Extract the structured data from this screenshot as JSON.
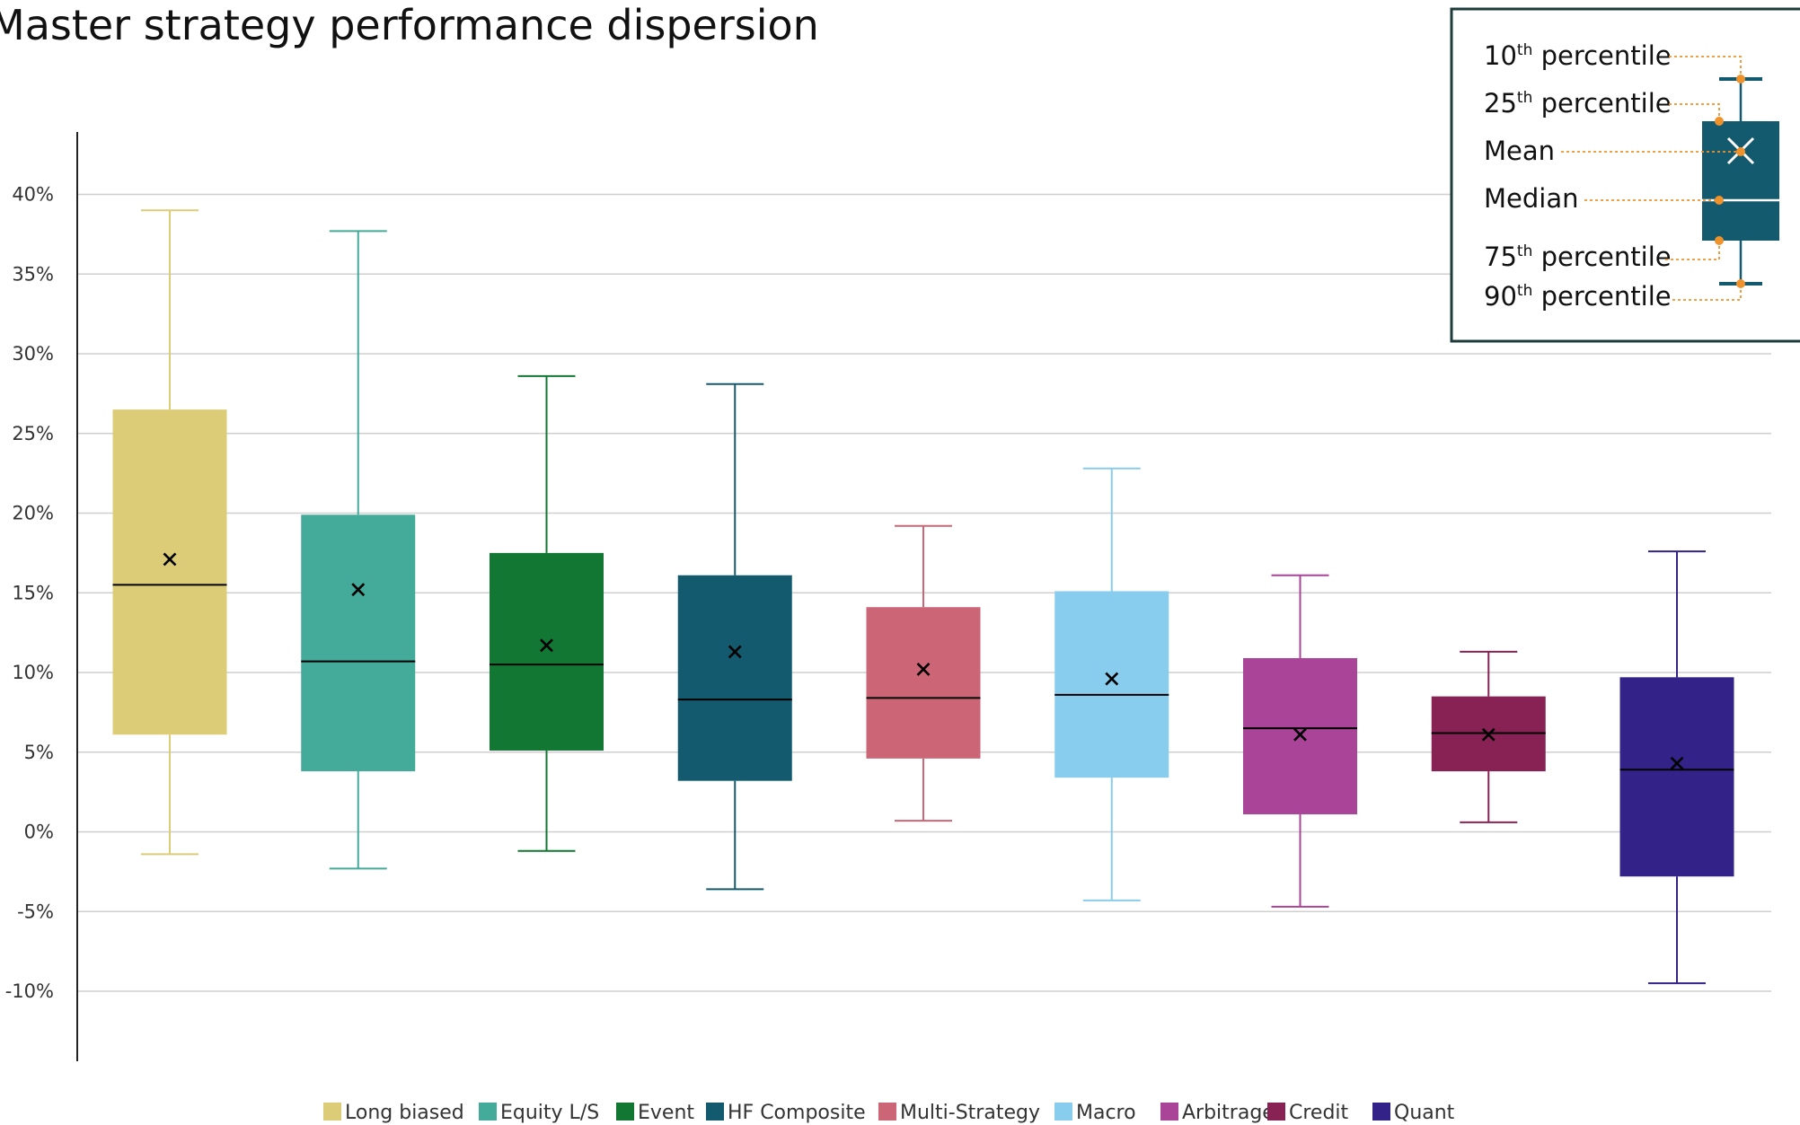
{
  "chart_data": {
    "type": "boxplot",
    "title": "Master strategy performance dispersion",
    "xlabel": "",
    "ylabel": "",
    "ylim": [
      -14,
      44
    ],
    "y_ticks": [
      40,
      35,
      30,
      25,
      20,
      15,
      10,
      5,
      0,
      -5,
      -10
    ],
    "y_tick_labels": [
      "40%",
      "35%",
      "30%",
      "25%",
      "20%",
      "15%",
      "10%",
      "5%",
      "0%",
      "-5%",
      "-10%"
    ],
    "grid": true,
    "legend_position": "bottom",
    "series": [
      {
        "name": "Long biased",
        "color": "#dccc77",
        "p10": -1.4,
        "p25": 6.1,
        "median": 15.5,
        "mean": 17.1,
        "p75": 26.5,
        "p90": 39.0
      },
      {
        "name": "Equity L/S",
        "color": "#44aa99",
        "p10": -2.3,
        "p25": 3.8,
        "median": 10.7,
        "mean": 15.2,
        "p75": 19.9,
        "p90": 37.7
      },
      {
        "name": "Event",
        "color": "#117733",
        "p10": -1.2,
        "p25": 5.1,
        "median": 10.5,
        "mean": 11.7,
        "p75": 17.5,
        "p90": 28.6
      },
      {
        "name": "HF Composite",
        "color": "#135a6e",
        "p10": -3.6,
        "p25": 3.2,
        "median": 8.3,
        "mean": 11.3,
        "p75": 16.1,
        "p90": 28.1
      },
      {
        "name": "Multi-Strategy",
        "color": "#cc6677",
        "p10": 0.7,
        "p25": 4.6,
        "median": 8.4,
        "mean": 10.2,
        "p75": 14.1,
        "p90": 19.2
      },
      {
        "name": "Macro",
        "color": "#88ccee",
        "p10": -4.3,
        "p25": 3.4,
        "median": 8.6,
        "mean": 9.6,
        "p75": 15.1,
        "p90": 22.8
      },
      {
        "name": "Arbitrage",
        "color": "#aa4499",
        "p10": -4.7,
        "p25": 1.1,
        "median": 6.5,
        "mean": 6.1,
        "p75": 10.9,
        "p90": 16.1
      },
      {
        "name": "Credit",
        "color": "#882255",
        "p10": 0.6,
        "p25": 3.8,
        "median": 6.2,
        "mean": 6.1,
        "p75": 8.5,
        "p90": 11.3
      },
      {
        "name": "Quant",
        "color": "#332288",
        "p10": -9.5,
        "p25": -2.8,
        "median": 3.9,
        "mean": 4.3,
        "p75": 9.7,
        "p90": 17.6
      }
    ]
  },
  "key": {
    "items": [
      {
        "base": "10",
        "sup": "th",
        "rest": " percentile"
      },
      {
        "base": "25",
        "sup": "th",
        "rest": " percentile"
      },
      {
        "base": "Mean",
        "sup": "",
        "rest": ""
      },
      {
        "base": "Median",
        "sup": "",
        "rest": ""
      },
      {
        "base": "75",
        "sup": "th",
        "rest": " percentile"
      },
      {
        "base": "90",
        "sup": "th",
        "rest": " percentile"
      }
    ],
    "box_color": "#135a6e",
    "marker_color": "#f0922b"
  }
}
